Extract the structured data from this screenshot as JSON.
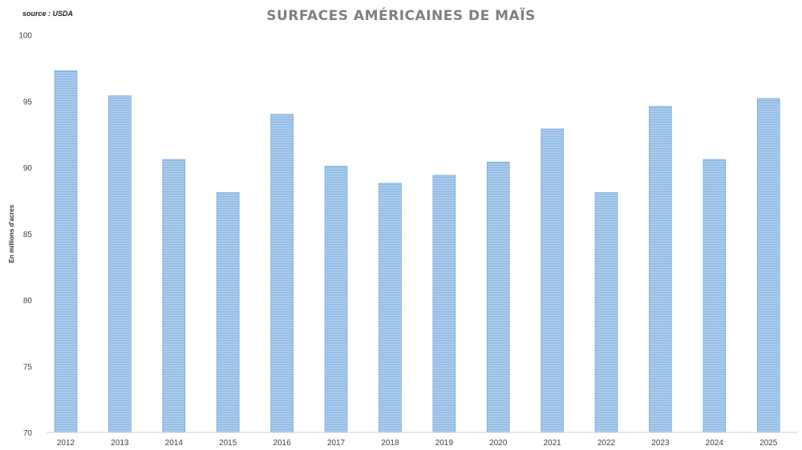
{
  "chart_data": {
    "type": "bar",
    "title": "SURFACES AMÉRICAINES DE MAÏS",
    "source": "source : USDA",
    "xlabel": "",
    "ylabel": "En millions d'acres",
    "ylim": [
      70,
      100
    ],
    "yticks": [
      70,
      75,
      80,
      85,
      90,
      95,
      100
    ],
    "grid": false,
    "categories": [
      "2012",
      "2013",
      "2014",
      "2015",
      "2016",
      "2017",
      "2018",
      "2019",
      "2020",
      "2021",
      "2022",
      "2023",
      "2024",
      "2025"
    ],
    "values": [
      97.3,
      95.4,
      90.6,
      88.1,
      94.0,
      90.1,
      88.8,
      89.4,
      90.4,
      92.9,
      88.1,
      94.6,
      90.6,
      95.2
    ],
    "bar_color": "#9dc3e6",
    "bar_edge_color": "#6fa0d2"
  }
}
